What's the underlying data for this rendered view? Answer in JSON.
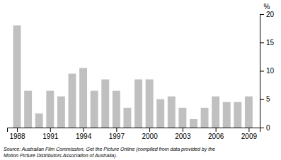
{
  "chart_data": {
    "type": "bar",
    "x": [
      1988,
      1989,
      1990,
      1991,
      1992,
      1993,
      1994,
      1995,
      1996,
      1997,
      1998,
      1999,
      2000,
      2001,
      2002,
      2003,
      2004,
      2005,
      2006,
      2007,
      2008,
      2009
    ],
    "values": [
      18.0,
      6.5,
      2.5,
      6.5,
      5.5,
      9.5,
      10.5,
      6.5,
      8.5,
      6.5,
      3.5,
      8.5,
      8.5,
      5.0,
      5.5,
      3.5,
      1.5,
      3.5,
      5.5,
      4.5,
      4.5,
      5.5
    ],
    "color": "#c0c0c0",
    "xlim": [
      1987.1,
      2010.0
    ],
    "xticks": [
      1988,
      1991,
      1994,
      1997,
      2000,
      2003,
      2006,
      2009
    ],
    "ylim": [
      0,
      20
    ],
    "yticks": [
      0,
      5,
      10,
      15,
      20
    ],
    "ylabel": "%",
    "annotations": [
      "Source: Australian Film Commission, Get the Picture Online (compiled from data provided by the",
      "Motion Picture Distributors Association of Australia)."
    ],
    "grid": false
  }
}
